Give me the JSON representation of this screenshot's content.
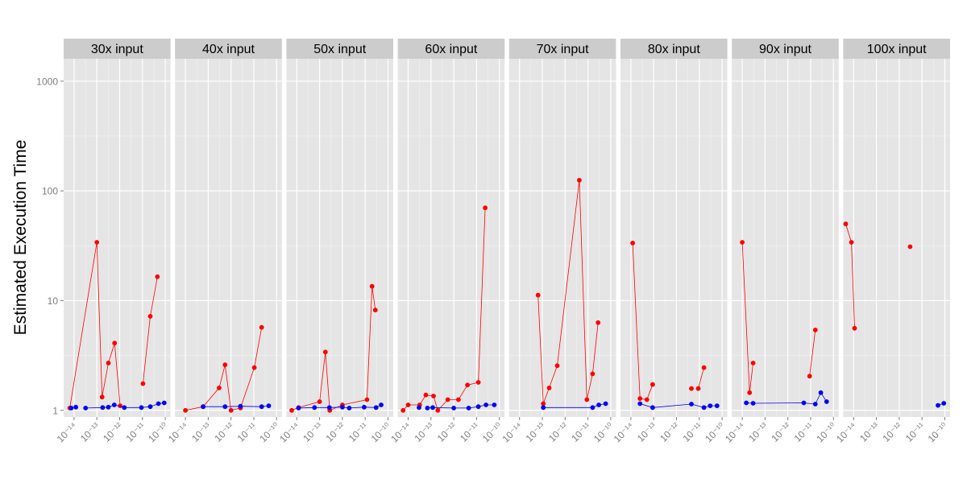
{
  "chart_data": {
    "type": "line",
    "ylabel": "Estimated Execution Time",
    "y_scale": "log10",
    "ylim": [
      0.87,
      1600
    ],
    "y_ticks": [
      1,
      10,
      100,
      1000
    ],
    "y_tick_labels": [
      "1",
      "10",
      "100",
      "1000"
    ],
    "x_scale": "log10",
    "xlim": [
      3.5e-15,
      1.7e-10
    ],
    "x_ticks": [
      1e-14,
      1e-13,
      1e-12,
      1e-11,
      1e-10
    ],
    "x_tick_labels": [
      "10⁻¹⁴",
      "10⁻¹³",
      "10⁻¹²",
      "10⁻¹¹",
      "10⁻¹⁰"
    ],
    "grid": true,
    "legend": "none",
    "colors": {
      "red": "#ff0000",
      "blue": "#0000ff",
      "panel_bg": "#e5e5e5",
      "strip_bg": "#cccccc",
      "grid": "#ffffff"
    },
    "panels": [
      {
        "label": "30x input",
        "series": [
          {
            "color": "red",
            "points": [
              [
                6.5e-15,
                1.05
              ],
              [
                1e-13,
                34
              ],
              [
                1.7e-13,
                1.32
              ],
              [
                3.2e-13,
                2.7
              ],
              [
                6e-13,
                4.1
              ],
              [
                1.05e-12,
                1.1
              ]
            ],
            "segments": [
              [
                0,
                5
              ]
            ]
          },
          {
            "color": "red",
            "points": [
              [
                1.05e-11,
                1.75
              ],
              [
                2.2e-11,
                7.2
              ],
              [
                4.5e-11,
                16.5
              ]
            ],
            "segments": [
              [
                0,
                2
              ]
            ]
          },
          {
            "color": "blue",
            "points": [
              [
                7.5e-15,
                1.05
              ],
              [
                1.2e-14,
                1.07
              ],
              [
                3.2e-14,
                1.05
              ],
              [
                1.8e-13,
                1.06
              ],
              [
                3.2e-13,
                1.07
              ],
              [
                5.8e-13,
                1.12
              ],
              [
                1.6e-12,
                1.06
              ],
              [
                9e-12,
                1.06
              ],
              [
                2.2e-11,
                1.08
              ],
              [
                5e-11,
                1.15
              ],
              [
                9e-11,
                1.17
              ]
            ],
            "segments": [
              [
                2,
                10
              ]
            ]
          }
        ]
      },
      {
        "label": "40x input",
        "series": [
          {
            "color": "red",
            "points": [
              [
                1e-14,
                1.0
              ],
              [
                6e-14,
                1.08
              ],
              [
                3e-13,
                1.6
              ],
              [
                5.5e-13,
                2.6
              ],
              [
                1e-12,
                1.0
              ],
              [
                2.6e-12,
                1.05
              ],
              [
                1.05e-11,
                2.45
              ],
              [
                2.2e-11,
                5.7
              ]
            ],
            "segments": [
              [
                0,
                7
              ]
            ]
          },
          {
            "color": "blue",
            "points": [
              [
                6e-14,
                1.08
              ],
              [
                5.5e-13,
                1.08
              ],
              [
                2.6e-12,
                1.09
              ],
              [
                2.2e-11,
                1.08
              ],
              [
                4.5e-11,
                1.1
              ]
            ],
            "segments": [
              [
                0,
                4
              ]
            ]
          }
        ]
      },
      {
        "label": "50x input",
        "series": [
          {
            "color": "red",
            "points": [
              [
                6e-15,
                1.0
              ],
              [
                1.2e-14,
                1.06
              ],
              [
                1e-13,
                1.2
              ],
              [
                1.8e-13,
                3.4
              ],
              [
                2.8e-13,
                1.0
              ],
              [
                1e-12,
                1.12
              ],
              [
                1.2e-11,
                1.25
              ],
              [
                2e-11,
                13.5
              ],
              [
                2.8e-11,
                8.2
              ]
            ],
            "segments": [
              [
                0,
                8
              ]
            ]
          },
          {
            "color": "blue",
            "points": [
              [
                1.2e-14,
                1.05
              ],
              [
                6e-14,
                1.06
              ],
              [
                2.7e-13,
                1.06
              ],
              [
                1e-12,
                1.07
              ],
              [
                2e-12,
                1.05
              ],
              [
                9e-12,
                1.07
              ],
              [
                3e-11,
                1.06
              ],
              [
                5e-11,
                1.12
              ]
            ],
            "segments": [
              [
                0,
                7
              ]
            ]
          }
        ]
      },
      {
        "label": "60x input",
        "series": [
          {
            "color": "red",
            "points": [
              [
                6e-15,
                1.0
              ],
              [
                1e-14,
                1.12
              ],
              [
                3.2e-14,
                1.12
              ],
              [
                6e-14,
                1.38
              ],
              [
                1.3e-13,
                1.35
              ],
              [
                2e-13,
                1.0
              ],
              [
                5.5e-13,
                1.25
              ],
              [
                1.6e-12,
                1.25
              ],
              [
                4e-12,
                1.7
              ],
              [
                1.2e-11,
                1.8
              ],
              [
                2.4e-11,
                70
              ]
            ],
            "segments": [
              [
                0,
                10
              ]
            ]
          },
          {
            "color": "blue",
            "points": [
              [
                3e-14,
                1.06
              ],
              [
                7e-14,
                1.05
              ],
              [
                1.2e-13,
                1.06
              ],
              [
                1e-12,
                1.05
              ],
              [
                4.5e-12,
                1.05
              ],
              [
                1.2e-11,
                1.08
              ],
              [
                2.6e-11,
                1.12
              ],
              [
                6e-11,
                1.12
              ]
            ],
            "segments": [
              [
                1,
                7
              ]
            ]
          }
        ]
      },
      {
        "label": "70x input",
        "series": [
          {
            "color": "red",
            "points": [
              [
                6.5e-14,
                11.2
              ],
              [
                1.1e-13,
                1.15
              ],
              [
                2e-13,
                1.6
              ],
              [
                4.5e-13,
                2.55
              ],
              [
                4.2e-12,
                125
              ],
              [
                9e-12,
                1.25
              ],
              [
                1.6e-11,
                2.15
              ],
              [
                2.8e-11,
                6.3
              ]
            ],
            "segments": [
              [
                0,
                7
              ]
            ]
          },
          {
            "color": "blue",
            "points": [
              [
                1.1e-13,
                1.06
              ],
              [
                1.6e-11,
                1.06
              ],
              [
                3e-11,
                1.12
              ],
              [
                6e-11,
                1.15
              ]
            ],
            "segments": [
              [
                0,
                3
              ]
            ]
          }
        ]
      },
      {
        "label": "80x input",
        "series": [
          {
            "color": "red",
            "points": [
              [
                1.2e-14,
                33.5
              ],
              [
                2.5e-14,
                1.28
              ],
              [
                5e-14,
                1.25
              ],
              [
                9e-14,
                1.72
              ]
            ],
            "segments": [
              [
                0,
                3
              ]
            ]
          },
          {
            "color": "red",
            "points": [
              [
                4.5e-12,
                1.58
              ],
              [
                9e-12,
                1.58
              ],
              [
                1.6e-11,
                2.45
              ]
            ],
            "segments": [
              [
                1,
                2
              ]
            ]
          },
          {
            "color": "blue",
            "points": [
              [
                2.5e-14,
                1.15
              ],
              [
                9e-14,
                1.06
              ],
              [
                4.5e-12,
                1.14
              ],
              [
                1.6e-11,
                1.06
              ],
              [
                3e-11,
                1.1
              ],
              [
                6e-11,
                1.1
              ]
            ],
            "segments": [
              [
                0,
                5
              ]
            ]
          }
        ]
      },
      {
        "label": "90x input",
        "series": [
          {
            "color": "red",
            "points": [
              [
                1e-14,
                34
              ],
              [
                2.1e-14,
                1.45
              ],
              [
                3e-14,
                2.7
              ]
            ],
            "segments": [
              [
                0,
                2
              ]
            ]
          },
          {
            "color": "red",
            "points": [
              [
                9e-12,
                2.05
              ],
              [
                1.6e-11,
                5.4
              ]
            ],
            "segments": [
              [
                0,
                1
              ]
            ]
          },
          {
            "color": "blue",
            "points": [
              [
                1.5e-14,
                1.17
              ],
              [
                3e-14,
                1.16
              ],
              [
                5e-12,
                1.17
              ],
              [
                1.6e-11,
                1.14
              ],
              [
                2.8e-11,
                1.45
              ],
              [
                5e-11,
                1.2
              ]
            ],
            "segments": [
              [
                0,
                5
              ]
            ]
          }
        ]
      },
      {
        "label": "100x input",
        "series": [
          {
            "color": "red",
            "points": [
              [
                4.5e-15,
                50
              ],
              [
                8e-15,
                34
              ],
              [
                1.1e-14,
                5.6
              ]
            ],
            "segments": [
              [
                0,
                2
              ]
            ]
          },
          {
            "color": "red",
            "points": [
              [
                3e-12,
                31
              ]
            ],
            "segments": []
          },
          {
            "color": "blue",
            "points": [
              [
                5e-11,
                1.11
              ],
              [
                9e-11,
                1.16
              ]
            ],
            "segments": [
              [
                0,
                1
              ]
            ]
          }
        ]
      }
    ]
  }
}
